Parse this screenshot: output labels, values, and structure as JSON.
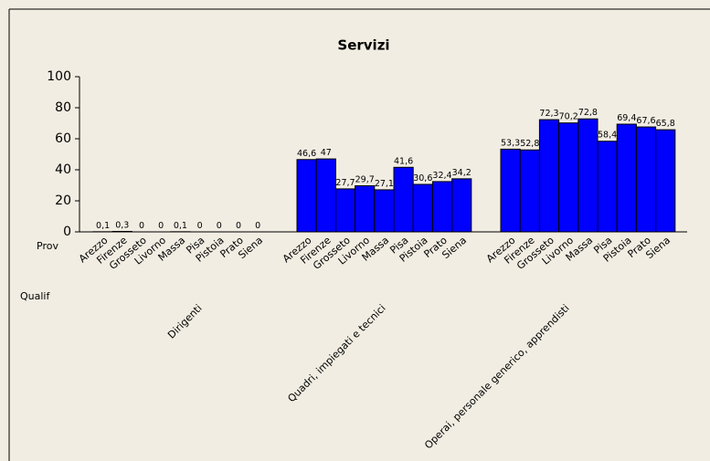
{
  "chart_data": {
    "type": "bar",
    "title": "Servizi",
    "x_label": "Prov",
    "group_label": "Qualif",
    "categories": [
      "Arezzo",
      "Firenze",
      "Grosseto",
      "Livorno",
      "Massa",
      "Pisa",
      "Pistoia",
      "Prato",
      "Siena"
    ],
    "series": [
      {
        "name": "Dirigenti",
        "color": "#0000ff",
        "values": [
          0.1,
          0.3,
          0,
          0,
          0.1,
          0,
          0,
          0,
          0
        ],
        "value_labels": [
          "0,1",
          "0,3",
          "0",
          "0",
          "0,1",
          "0",
          "0",
          "0",
          "0"
        ]
      },
      {
        "name": "Quadri, impiegati e tecnici",
        "color": "#0000ff",
        "values": [
          46.6,
          47,
          27.7,
          29.7,
          27.1,
          41.6,
          30.6,
          32.4,
          34.2
        ],
        "value_labels": [
          "46,6",
          "47",
          "27,7",
          "29,7",
          "27,1",
          "41,6",
          "30,6",
          "32,4",
          "34,2"
        ]
      },
      {
        "name": "Operai, personale generico, apprendisti",
        "color": "#0000ff",
        "values": [
          53.3,
          52.8,
          72.3,
          70.2,
          72.8,
          58.4,
          69.4,
          67.6,
          65.8
        ],
        "value_labels": [
          "53,3",
          "52,8",
          "72,3",
          "70,2",
          "72,8",
          "58,4",
          "69,4",
          "67,6",
          "65,8"
        ]
      }
    ],
    "ylim": [
      0,
      100
    ],
    "yticks": [
      0,
      20,
      40,
      60,
      80,
      100
    ]
  }
}
